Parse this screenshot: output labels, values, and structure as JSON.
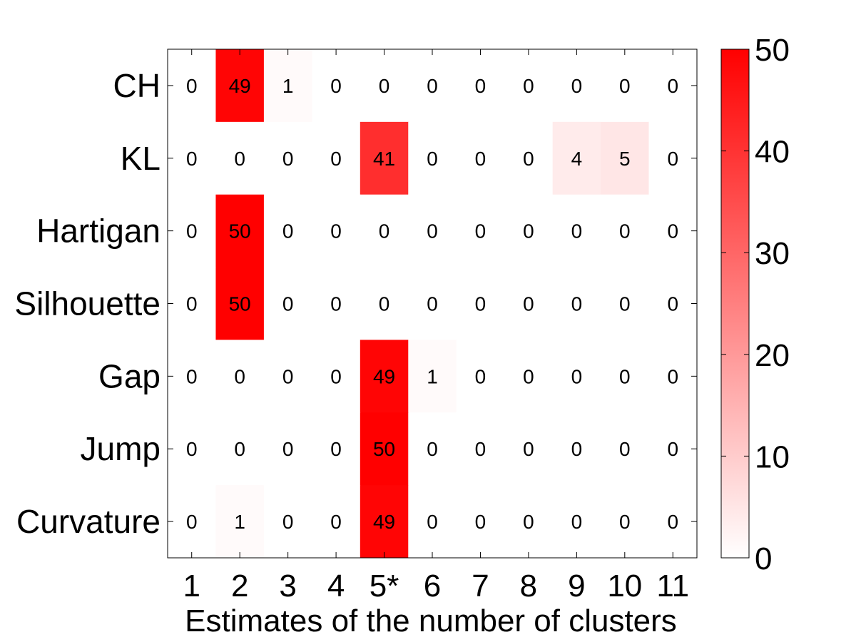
{
  "chart_data": {
    "type": "heatmap",
    "title": "",
    "xlabel": "Estimates of the number of clusters",
    "ylabel": "",
    "rows": [
      "CH",
      "KL",
      "Hartigan",
      "Silhouette",
      "Gap",
      "Jump",
      "Curvature"
    ],
    "columns": [
      "1",
      "2",
      "3",
      "4",
      "5*",
      "6",
      "7",
      "8",
      "9",
      "10",
      "11"
    ],
    "values": [
      [
        0,
        49,
        1,
        0,
        0,
        0,
        0,
        0,
        0,
        0,
        0
      ],
      [
        0,
        0,
        0,
        0,
        41,
        0,
        0,
        0,
        4,
        5,
        0
      ],
      [
        0,
        50,
        0,
        0,
        0,
        0,
        0,
        0,
        0,
        0,
        0
      ],
      [
        0,
        50,
        0,
        0,
        0,
        0,
        0,
        0,
        0,
        0,
        0
      ],
      [
        0,
        0,
        0,
        0,
        49,
        1,
        0,
        0,
        0,
        0,
        0
      ],
      [
        0,
        0,
        0,
        0,
        50,
        0,
        0,
        0,
        0,
        0,
        0
      ],
      [
        0,
        1,
        0,
        0,
        49,
        0,
        0,
        0,
        0,
        0,
        0
      ]
    ],
    "colorbar": {
      "min": 0,
      "max": 50,
      "ticks": [
        0,
        10,
        20,
        30,
        40,
        50
      ],
      "low_color": "#ffffff",
      "high_color": "#ff0000"
    },
    "grid": false
  }
}
